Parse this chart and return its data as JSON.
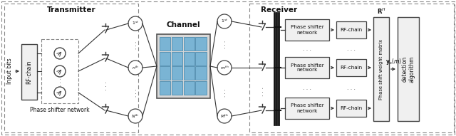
{
  "bg_color": "#ffffff",
  "block_color": "#f0f0f0",
  "block_edge_color": "#444444",
  "channel_bg_color": "#e8e8e8",
  "channel_cell_color": "#7ab4d4",
  "channel_cell_edge": "#5a94b4",
  "arrow_color": "#333333",
  "text_color": "#111111",
  "dashed_color": "#666666",
  "title_transmitter": "Transmitter",
  "title_channel": "Channel",
  "title_receiver": "Receiver",
  "label_input": "Input bits",
  "label_rfchain_tx": "RF-chain",
  "label_phase_shifter_tx": "Phase shifter network",
  "label_phase_shifter_rx": "Phase shifter\nnetwork",
  "label_rfchain_rx": "RF-chain",
  "label_psw_matrix": "Phase shift weight matrix",
  "label_detection": "detection\nalgorithm",
  "label_RH": "R^{H}",
  "label_ym": "y_s(m)",
  "node_labels_tx": [
    "1^{st}",
    "n^{th}",
    "N^{th}"
  ],
  "node_labels_rx": [
    "1^{st}",
    "m^{th}",
    "M^{th}"
  ],
  "figsize": [
    6.4,
    1.91
  ],
  "dpi": 100
}
